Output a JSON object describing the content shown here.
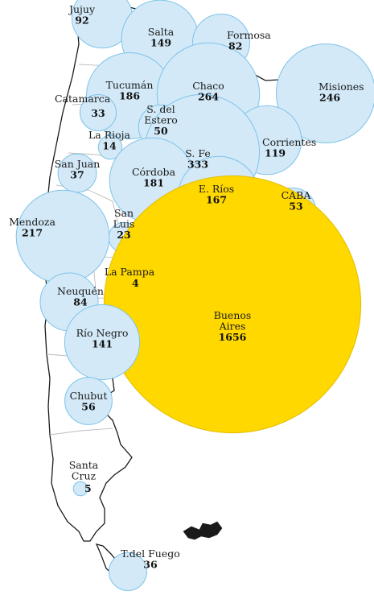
{
  "colors": {
    "bubble_fill": "#d3e9f7",
    "bubble_stroke": "#7ec3ea",
    "highlight_fill": "#ffd800",
    "highlight_stroke": "#e2bd00",
    "border": "#1a1a1a",
    "inner_border": "#bdbdbd"
  },
  "provinces": [
    {
      "id": "jujuy",
      "name_lines": [
        "Jujuy"
      ],
      "value": "92",
      "amount": 92
    },
    {
      "id": "salta",
      "name_lines": [
        "Salta"
      ],
      "value": "149",
      "amount": 149
    },
    {
      "id": "formosa",
      "name_lines": [
        "Formosa"
      ],
      "value": "82",
      "amount": 82
    },
    {
      "id": "misiones",
      "name_lines": [
        "Misiones"
      ],
      "value": "246",
      "amount": 246
    },
    {
      "id": "tucuman",
      "name_lines": [
        "Tucumán"
      ],
      "value": "186",
      "amount": 186
    },
    {
      "id": "chaco",
      "name_lines": [
        "Chaco"
      ],
      "value": "264",
      "amount": 264
    },
    {
      "id": "catamarca",
      "name_lines": [
        "Catamarca"
      ],
      "value": "33",
      "amount": 33
    },
    {
      "id": "sdelestero",
      "name_lines": [
        "S. del",
        "Estero"
      ],
      "value": "50",
      "amount": 50
    },
    {
      "id": "corrientes",
      "name_lines": [
        "Corrientes"
      ],
      "value": "119",
      "amount": 119
    },
    {
      "id": "larioja",
      "name_lines": [
        "La Rioja"
      ],
      "value": "14",
      "amount": 14
    },
    {
      "id": "sanjuan",
      "name_lines": [
        "San Juan"
      ],
      "value": "37",
      "amount": 37
    },
    {
      "id": "sfe",
      "name_lines": [
        "S. Fe"
      ],
      "value": "333",
      "amount": 333
    },
    {
      "id": "cordoba",
      "name_lines": [
        "Córdoba"
      ],
      "value": "181",
      "amount": 181
    },
    {
      "id": "erios",
      "name_lines": [
        "E. Ríos"
      ],
      "value": "167",
      "amount": 167
    },
    {
      "id": "caba",
      "name_lines": [
        "CABA"
      ],
      "value": "53",
      "amount": 53
    },
    {
      "id": "sanluis",
      "name_lines": [
        "San",
        "Luis"
      ],
      "value": "23",
      "amount": 23
    },
    {
      "id": "mendoza",
      "name_lines": [
        "Mendoza"
      ],
      "value": "217",
      "amount": 217
    },
    {
      "id": "lapampa",
      "name_lines": [
        "La Pampa"
      ],
      "value": "4",
      "amount": 4
    },
    {
      "id": "neuquen",
      "name_lines": [
        "Neuquén"
      ],
      "value": "84",
      "amount": 84
    },
    {
      "id": "buenosaires",
      "name_lines": [
        "Buenos",
        "Aires"
      ],
      "value": "1656",
      "amount": 1656,
      "highlight": true
    },
    {
      "id": "rionegro",
      "name_lines": [
        "Río Negro"
      ],
      "value": "141",
      "amount": 141
    },
    {
      "id": "chubut",
      "name_lines": [
        "Chubut"
      ],
      "value": "56",
      "amount": 56
    },
    {
      "id": "santacruz",
      "name_lines": [
        "Santa",
        "Cruz"
      ],
      "value": "5",
      "amount": 5
    },
    {
      "id": "tdelfuego",
      "name_lines": [
        "T.del Fuego"
      ],
      "value": "36",
      "amount": 36
    }
  ]
}
